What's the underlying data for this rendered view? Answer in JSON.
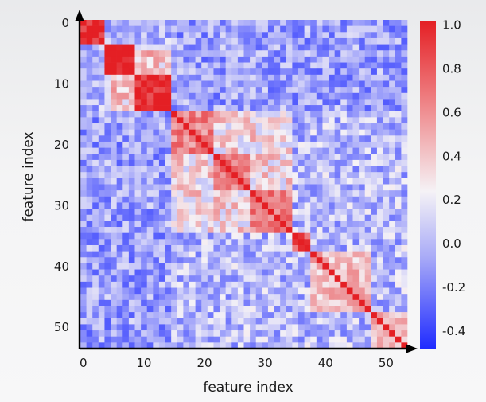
{
  "chart_data": {
    "type": "heatmap",
    "title": "",
    "xlabel": "feature index",
    "ylabel": "feature index",
    "x_ticks": [
      "0",
      "10",
      "20",
      "30",
      "40",
      "50"
    ],
    "y_ticks": [
      "0",
      "10",
      "20",
      "30",
      "40",
      "50"
    ],
    "x_tick_values": [
      0,
      10,
      20,
      30,
      40,
      50
    ],
    "y_tick_values": [
      0,
      10,
      20,
      30,
      40,
      50
    ],
    "n_features": 54,
    "colorbar": {
      "ticks": [
        "1.0",
        "0.8",
        "0.6",
        "0.4",
        "0.2",
        "0.0",
        "-0.2",
        "-0.4"
      ],
      "tick_values": [
        1.0,
        0.8,
        0.6,
        0.4,
        0.2,
        0.0,
        -0.2,
        -0.4
      ],
      "range": [
        -0.48,
        1.02
      ],
      "colormap": "bwr",
      "colors": {
        "low": "#1f2bff",
        "mid": "#f2f2f8",
        "high": "#e41f24"
      }
    },
    "blocks": [
      {
        "range": [
          0,
          4
        ],
        "value": 1.0
      },
      {
        "range": [
          4,
          9
        ],
        "value": 0.95
      },
      {
        "range": [
          9,
          15
        ],
        "value": 0.95
      },
      {
        "range": [
          15,
          22
        ],
        "value": 0.65
      },
      {
        "range": [
          22,
          28
        ],
        "value": 0.7
      },
      {
        "range": [
          28,
          35
        ],
        "value": 0.65
      },
      {
        "range": [
          35,
          38
        ],
        "value": 0.8
      },
      {
        "range": [
          38,
          48
        ],
        "value": 0.45
      },
      {
        "range": [
          48,
          54
        ],
        "value": 0.5
      }
    ],
    "block_pair_values": [
      {
        "rows": [
          0,
          15
        ],
        "cols": [
          15,
          54
        ],
        "value": -0.05
      },
      {
        "rows": [
          4,
          9
        ],
        "cols": [
          9,
          15
        ],
        "value": 0.4
      },
      {
        "rows": [
          15,
          35
        ],
        "cols": [
          15,
          35
        ],
        "value": 0.35
      },
      {
        "rows": [
          4,
          15
        ],
        "cols": [
          35,
          54
        ],
        "value": -0.35
      },
      {
        "rows": [
          15,
          35
        ],
        "cols": [
          35,
          54
        ],
        "value": 0.05
      },
      {
        "rows": [
          35,
          54
        ],
        "cols": [
          38,
          54
        ],
        "value": 0.05
      }
    ]
  }
}
